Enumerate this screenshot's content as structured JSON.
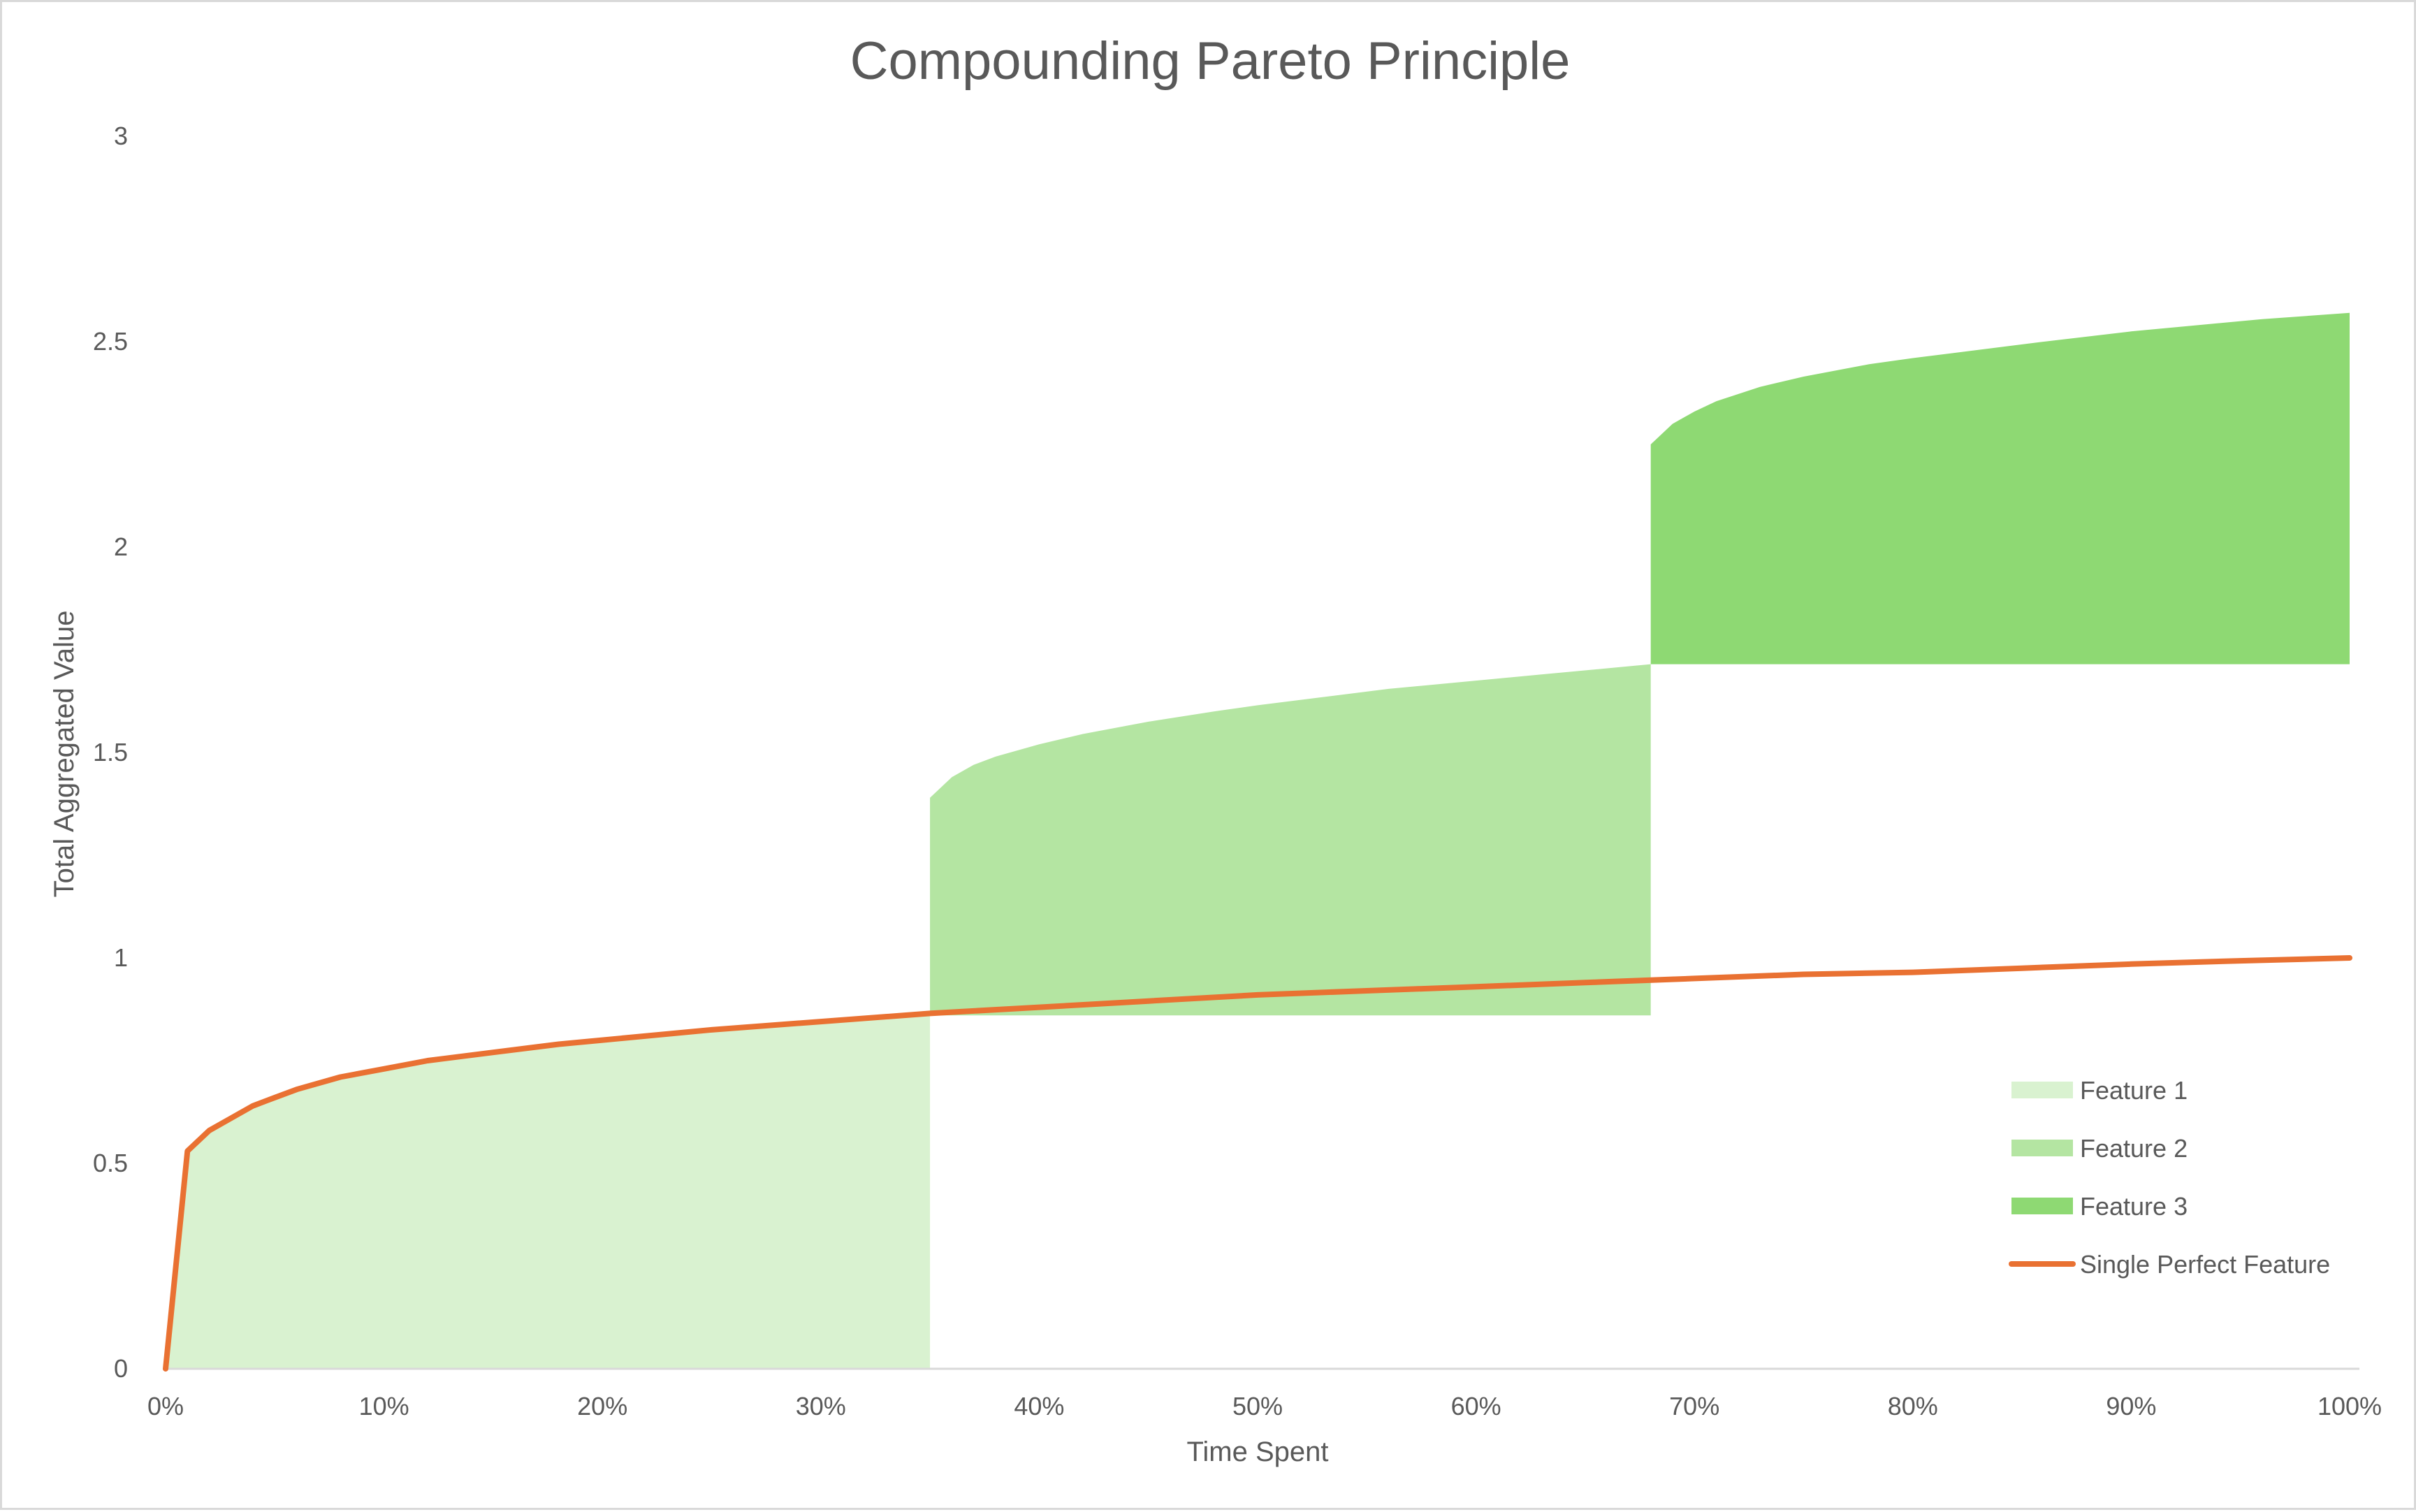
{
  "chart_data": {
    "type": "area",
    "title": "Compounding Pareto Principle",
    "xlabel": "Time Spent",
    "ylabel": "Total Aggregated Value",
    "xlim": [
      0,
      100
    ],
    "ylim": [
      0,
      3
    ],
    "x_ticks": [
      "0%",
      "10%",
      "20%",
      "30%",
      "40%",
      "50%",
      "60%",
      "70%",
      "80%",
      "90%",
      "100%"
    ],
    "y_ticks": [
      "0",
      "0.5",
      "1",
      "1.5",
      "2",
      "2.5",
      "3"
    ],
    "grid": false,
    "legend_position": "bottom-right",
    "series": [
      {
        "name": "Feature 1",
        "kind": "area",
        "color": "#d9f2d0",
        "x": [
          0,
          1,
          2,
          3,
          4,
          5,
          6,
          8,
          10,
          12,
          15,
          18,
          20,
          22,
          25,
          28,
          30,
          33,
          35
        ],
        "low": [
          0,
          0,
          0,
          0,
          0,
          0,
          0,
          0,
          0,
          0,
          0,
          0,
          0,
          0,
          0,
          0,
          0,
          0,
          0
        ],
        "high": [
          0,
          0.53,
          0.58,
          0.61,
          0.64,
          0.66,
          0.68,
          0.71,
          0.73,
          0.75,
          0.77,
          0.79,
          0.8,
          0.81,
          0.825,
          0.84,
          0.845,
          0.855,
          0.865
        ]
      },
      {
        "name": "Feature 2",
        "kind": "area",
        "color": "#b4e5a2",
        "x": [
          35,
          36,
          37,
          38,
          40,
          42,
          45,
          48,
          50,
          53,
          56,
          60,
          63,
          66,
          68
        ],
        "low": [
          0.86,
          0.86,
          0.86,
          0.86,
          0.86,
          0.86,
          0.86,
          0.86,
          0.86,
          0.86,
          0.86,
          0.86,
          0.86,
          0.86,
          0.86
        ],
        "high": [
          1.39,
          1.44,
          1.47,
          1.49,
          1.52,
          1.545,
          1.575,
          1.6,
          1.615,
          1.635,
          1.655,
          1.675,
          1.69,
          1.705,
          1.715
        ]
      },
      {
        "name": "Feature 3",
        "kind": "area",
        "color": "#8ed973",
        "x": [
          68,
          69,
          70,
          71,
          73,
          75,
          78,
          80,
          83,
          86,
          90,
          93,
          96,
          100
        ],
        "low": [
          1.715,
          1.715,
          1.715,
          1.715,
          1.715,
          1.715,
          1.715,
          1.715,
          1.715,
          1.715,
          1.715,
          1.715,
          1.715,
          1.715
        ],
        "high": [
          2.25,
          2.3,
          2.33,
          2.355,
          2.39,
          2.415,
          2.445,
          2.46,
          2.48,
          2.5,
          2.525,
          2.54,
          2.555,
          2.57
        ]
      },
      {
        "name": "Single Perfect Feature",
        "kind": "line",
        "color": "#e97132",
        "x": [
          0,
          1,
          2,
          3,
          4,
          5,
          6,
          8,
          10,
          12,
          15,
          18,
          20,
          25,
          30,
          35,
          40,
          45,
          50,
          55,
          60,
          65,
          70,
          75,
          80,
          85,
          90,
          95,
          100
        ],
        "values": [
          0,
          0.53,
          0.58,
          0.61,
          0.64,
          0.66,
          0.68,
          0.71,
          0.73,
          0.75,
          0.77,
          0.79,
          0.8,
          0.825,
          0.845,
          0.865,
          0.88,
          0.895,
          0.91,
          0.92,
          0.93,
          0.94,
          0.95,
          0.96,
          0.965,
          0.975,
          0.985,
          0.993,
          1.0
        ]
      }
    ]
  }
}
